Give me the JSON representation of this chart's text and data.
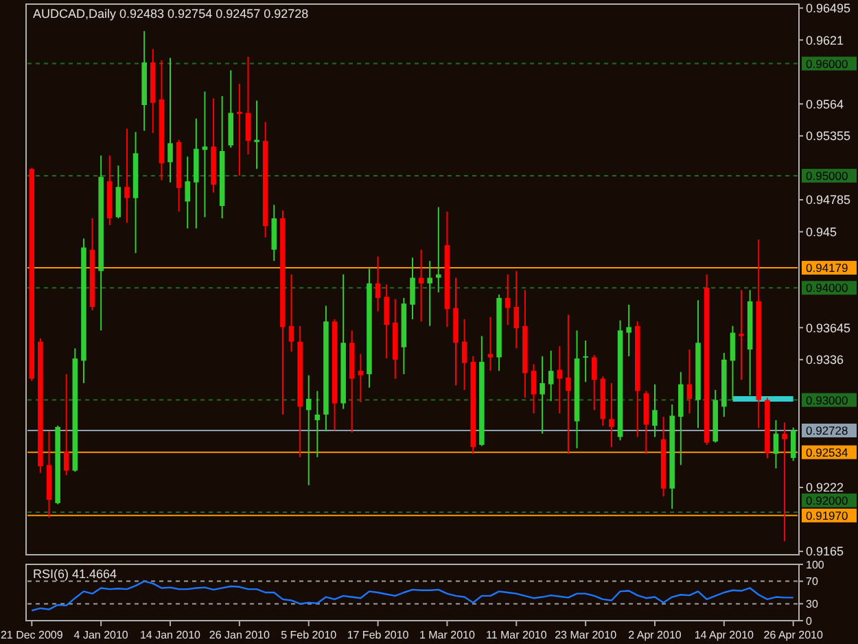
{
  "chart_data": [
    {
      "type": "candlestick",
      "title": "AUDCAD,Daily  0.92483 0.92754 0.92457 0.92728",
      "tick_labels": "y",
      "categories": [
        null,
        null,
        null,
        null,
        null,
        null,
        null,
        null,
        null,
        null,
        null,
        null,
        null,
        null,
        null,
        null,
        null,
        null,
        null,
        null,
        null,
        null,
        null,
        null,
        null,
        null,
        null,
        null,
        null,
        null,
        null,
        null,
        null,
        null,
        null,
        null,
        null,
        null,
        null,
        null,
        null,
        null,
        null,
        null,
        null,
        null,
        null,
        null,
        null,
        null,
        null,
        null,
        null,
        null,
        null,
        null,
        null,
        null,
        null,
        null,
        null,
        null,
        null,
        null,
        null,
        null,
        null,
        null,
        null,
        null,
        null,
        null,
        null,
        null,
        null,
        null,
        null,
        null,
        null,
        null,
        null,
        null,
        null,
        null,
        null,
        null,
        null,
        null,
        null
      ],
      "ohlc": [
        [
          0.9506,
          0.9507,
          0.9317,
          0.9319
        ],
        [
          0.9352,
          0.9355,
          0.9235,
          0.9241
        ],
        [
          0.9242,
          0.9272,
          0.9195,
          0.9211
        ],
        [
          0.9208,
          0.9277,
          0.9207,
          0.9276
        ],
        [
          0.9254,
          0.9323,
          0.9233,
          0.9237
        ],
        [
          0.9237,
          0.9346,
          0.9236,
          0.9337
        ],
        [
          0.9335,
          0.9444,
          0.9315,
          0.9436
        ],
        [
          0.9434,
          0.9462,
          0.938,
          0.9383
        ],
        [
          0.9415,
          0.9518,
          0.9362,
          0.9499
        ],
        [
          0.9495,
          0.9518,
          0.9456,
          0.9462
        ],
        [
          0.9463,
          0.9509,
          0.9462,
          0.949
        ],
        [
          0.949,
          0.9542,
          0.9458,
          0.948
        ],
        [
          0.948,
          0.9539,
          0.9431,
          0.952
        ],
        [
          0.9563,
          0.9629,
          0.954,
          0.9601
        ],
        [
          0.9601,
          0.9613,
          0.9538,
          0.9565
        ],
        [
          0.9568,
          0.9603,
          0.9496,
          0.9511
        ],
        [
          0.9512,
          0.9605,
          0.9494,
          0.9529
        ],
        [
          0.953,
          0.9532,
          0.9468,
          0.9489
        ],
        [
          0.9477,
          0.9517,
          0.9453,
          0.9495
        ],
        [
          0.9494,
          0.9551,
          0.9453,
          0.9524
        ],
        [
          0.9523,
          0.9575,
          0.9463,
          0.9526
        ],
        [
          0.9526,
          0.9569,
          0.9485,
          0.9492
        ],
        [
          0.9473,
          0.9571,
          0.9462,
          0.9522
        ],
        [
          0.9527,
          0.9594,
          0.9525,
          0.9556
        ],
        [
          0.9557,
          0.9582,
          0.95,
          0.9555
        ],
        [
          0.9556,
          0.9606,
          0.9519,
          0.9531
        ],
        [
          0.953,
          0.9567,
          0.9506,
          0.9532
        ],
        [
          0.9531,
          0.9548,
          0.9445,
          0.9455
        ],
        [
          0.9434,
          0.9474,
          0.9424,
          0.9462
        ],
        [
          0.9462,
          0.9469,
          0.9287,
          0.9365
        ],
        [
          0.9366,
          0.9412,
          0.9343,
          0.9352
        ],
        [
          0.9352,
          0.9366,
          0.9249,
          0.9294
        ],
        [
          0.9291,
          0.9322,
          0.9224,
          0.9301
        ],
        [
          0.9282,
          0.9308,
          0.9249,
          0.9287
        ],
        [
          0.9287,
          0.9384,
          0.9272,
          0.937
        ],
        [
          0.937,
          0.9372,
          0.9273,
          0.9297
        ],
        [
          0.9297,
          0.9412,
          0.9292,
          0.9351
        ],
        [
          0.9351,
          0.9362,
          0.9271,
          0.9319
        ],
        [
          0.9326,
          0.9341,
          0.9298,
          0.9322
        ],
        [
          0.9323,
          0.9417,
          0.9311,
          0.9404
        ],
        [
          0.9404,
          0.9428,
          0.9379,
          0.9391
        ],
        [
          0.9392,
          0.9403,
          0.9337,
          0.9367
        ],
        [
          0.9369,
          0.939,
          0.9319,
          0.9336
        ],
        [
          0.9347,
          0.9391,
          0.9323,
          0.9386
        ],
        [
          0.9385,
          0.9427,
          0.9372,
          0.9409
        ],
        [
          0.9409,
          0.9434,
          0.937,
          0.9404
        ],
        [
          0.9404,
          0.9424,
          0.9366,
          0.9409
        ],
        [
          0.9409,
          0.9472,
          0.9396,
          0.9412
        ],
        [
          0.9438,
          0.9468,
          0.9365,
          0.9381
        ],
        [
          0.9382,
          0.9409,
          0.9313,
          0.9351
        ],
        [
          0.9352,
          0.9372,
          0.9309,
          0.9333
        ],
        [
          0.9334,
          0.9339,
          0.9252,
          0.9258
        ],
        [
          0.926,
          0.9357,
          0.9259,
          0.9334
        ],
        [
          0.9341,
          0.9374,
          0.9326,
          0.9338
        ],
        [
          0.9338,
          0.9394,
          0.9326,
          0.9391
        ],
        [
          0.9391,
          0.9412,
          0.9367,
          0.9382
        ],
        [
          0.9383,
          0.9415,
          0.9346,
          0.9364
        ],
        [
          0.9366,
          0.9398,
          0.9302,
          0.9324
        ],
        [
          0.9326,
          0.9332,
          0.9288,
          0.9305
        ],
        [
          0.9305,
          0.9339,
          0.927,
          0.9315
        ],
        [
          0.9314,
          0.9344,
          0.9299,
          0.9326
        ],
        [
          0.9327,
          0.9348,
          0.9288,
          0.9319
        ],
        [
          0.932,
          0.9376,
          0.9252,
          0.9308
        ],
        [
          0.9281,
          0.9362,
          0.9257,
          0.9337
        ],
        [
          0.9338,
          0.9353,
          0.9316,
          0.9339
        ],
        [
          0.9338,
          0.934,
          0.9291,
          0.9318
        ],
        [
          0.9319,
          0.9321,
          0.9277,
          0.9283
        ],
        [
          0.9283,
          0.9315,
          0.9258,
          0.9276
        ],
        [
          0.9267,
          0.9371,
          0.9264,
          0.9362
        ],
        [
          0.936,
          0.9385,
          0.9339,
          0.9365
        ],
        [
          0.9366,
          0.937,
          0.9267,
          0.9308
        ],
        [
          0.9306,
          0.9308,
          0.9252,
          0.9278
        ],
        [
          0.9277,
          0.9314,
          0.9267,
          0.9291
        ],
        [
          0.9265,
          0.9285,
          0.9214,
          0.9221
        ],
        [
          0.9221,
          0.9296,
          0.9203,
          0.9286
        ],
        [
          0.9285,
          0.9325,
          0.9242,
          0.9314
        ],
        [
          0.9314,
          0.9345,
          0.9288,
          0.9301
        ],
        [
          0.93,
          0.9389,
          0.9275,
          0.9351
        ],
        [
          0.94,
          0.9412,
          0.926,
          0.9262
        ],
        [
          0.9263,
          0.9309,
          0.9262,
          0.93
        ],
        [
          0.9294,
          0.9342,
          0.9285,
          0.9336
        ],
        [
          0.9335,
          0.9366,
          0.93,
          0.936
        ],
        [
          0.9359,
          0.9398,
          0.9318,
          0.9357
        ],
        [
          0.9345,
          0.9398,
          0.9304,
          0.9388
        ],
        [
          0.9388,
          0.9443,
          0.9275,
          0.93
        ],
        [
          0.93,
          0.9302,
          0.9248,
          0.9253
        ],
        [
          0.9252,
          0.9282,
          0.9239,
          0.927
        ],
        [
          0.927,
          0.928,
          0.9174,
          0.9265
        ],
        [
          0.92483,
          0.92754,
          0.92457,
          0.92728
        ]
      ],
      "colors": [
        "#ff0000",
        "#ff0000",
        "#ff0000",
        "#32cd32",
        "#ff0000",
        "#32cd32",
        "#32cd32",
        "#ff0000",
        "#32cd32",
        "#ff0000",
        "#32cd32",
        "#ff0000",
        "#32cd32",
        "#32cd32",
        "#ff0000",
        "#ff0000",
        "#32cd32",
        "#ff0000",
        "#32cd32",
        "#32cd32",
        "#32cd32",
        "#ff0000",
        "#32cd32",
        "#32cd32",
        "#ff0000",
        "#ff0000",
        "#32cd32",
        "#ff0000",
        "#32cd32",
        "#ff0000",
        "#ff0000",
        "#ff0000",
        "#32cd32",
        "#32cd32",
        "#32cd32",
        "#ff0000",
        "#32cd32",
        "#ff0000",
        "#ff0000",
        "#32cd32",
        "#ff0000",
        "#ff0000",
        "#ff0000",
        "#32cd32",
        "#32cd32",
        "#ff0000",
        "#32cd32",
        "#32cd32",
        "#ff0000",
        "#ff0000",
        "#ff0000",
        "#ff0000",
        "#32cd32",
        "#ff0000",
        "#32cd32",
        "#ff0000",
        "#ff0000",
        "#ff0000",
        "#ff0000",
        "#32cd32",
        "#32cd32",
        "#ff0000",
        "#ff0000",
        "#32cd32",
        "#32cd32",
        "#ff0000",
        "#ff0000",
        "#ff0000",
        "#32cd32",
        "#32cd32",
        "#ff0000",
        "#ff0000",
        "#32cd32",
        "#ff0000",
        "#32cd32",
        "#32cd32",
        "#ff0000",
        "#32cd32",
        "#ff0000",
        "#32cd32",
        "#32cd32",
        "#32cd32",
        "#ff0000",
        "#32cd32",
        "#ff0000",
        "#ff0000",
        "#32cd32",
        "#ff0000",
        "#32cd32"
      ],
      "series": [
        {
          "type": "line",
          "color": "#33cccc",
          "values": [
            null,
            null,
            null,
            null,
            null,
            null,
            null,
            null,
            null,
            null,
            null,
            null,
            null,
            null,
            null,
            null,
            null,
            null,
            null,
            null,
            null,
            null,
            null,
            null,
            null,
            null,
            null,
            null,
            null,
            null,
            null,
            null,
            null,
            null,
            null,
            null,
            null,
            null,
            null,
            null,
            null,
            null,
            null,
            null,
            null,
            null,
            null,
            null,
            null,
            null,
            null,
            null,
            null,
            null,
            null,
            null,
            null,
            null,
            null,
            null,
            null,
            null,
            null,
            null,
            null,
            null,
            null,
            null,
            null,
            null,
            null,
            null,
            null,
            null,
            null,
            null,
            null,
            null,
            null,
            null,
            null,
            0.9301,
            0.9301,
            0.9301,
            0.9301,
            0.9301,
            0.9301,
            0.9301,
            0.9301
          ]
        }
      ],
      "ylim": [
        0.9162,
        0.9653
      ],
      "yticks": [
        0.96495,
        0.9621,
        0.9564,
        0.95355,
        0.94785,
        0.945,
        0.93645,
        0.9336,
        0.9222,
        0.9165
      ],
      "ref_lines": [
        {
          "axis": "y",
          "value": 0.96,
          "label": "0.96000",
          "color": "#1f6e1f",
          "line_style": "dashed"
        },
        {
          "axis": "y",
          "value": 0.95,
          "label": "0.95000",
          "color": "#1f6e1f",
          "line_style": "dashed"
        },
        {
          "axis": "y",
          "value": 0.94,
          "label": "0.94000",
          "color": "#1f6e1f",
          "line_style": "dashed"
        },
        {
          "axis": "y",
          "value": 0.93,
          "label": "0.93000",
          "color": "#1f6e1f",
          "line_style": "dashed"
        },
        {
          "axis": "y",
          "value": 0.92,
          "label": "0.92000",
          "color": "#1f6e1f",
          "line_style": "dashed"
        },
        {
          "axis": "y",
          "value": 0.94179,
          "label": "0.94179",
          "color": "#ff9900",
          "line_style": "solid"
        },
        {
          "axis": "y",
          "value": 0.92534,
          "label": "0.92534",
          "color": "#ff9900",
          "line_style": "solid"
        },
        {
          "axis": "y",
          "value": 0.9197,
          "label": "0.91970",
          "color": "#ff9900",
          "line_style": "solid"
        },
        {
          "axis": "y",
          "value": 0.92728,
          "label": "0.92728",
          "color": "#8fa0b0",
          "line_style": "solid"
        }
      ]
    },
    {
      "type": "line",
      "title": "RSI(6) 41.4664",
      "categories": [
        "21 Dec 2009",
        null,
        null,
        null,
        null,
        null,
        null,
        null,
        "4 Jan 2010",
        null,
        null,
        null,
        null,
        null,
        null,
        null,
        "14 Jan 2010",
        null,
        null,
        null,
        null,
        null,
        null,
        null,
        "26 Jan 2010",
        null,
        null,
        null,
        null,
        null,
        null,
        null,
        "5 Feb 2010",
        null,
        null,
        null,
        null,
        null,
        null,
        null,
        "17 Feb 2010",
        null,
        null,
        null,
        null,
        null,
        null,
        null,
        "1 Mar 2010",
        null,
        null,
        null,
        null,
        null,
        null,
        null,
        "11 Mar 2010",
        null,
        null,
        null,
        null,
        null,
        null,
        null,
        "23 Mar 2010",
        null,
        null,
        null,
        null,
        null,
        null,
        null,
        "2 Apr 2010",
        null,
        null,
        null,
        null,
        null,
        null,
        null,
        "14 Apr 2010",
        null,
        null,
        null,
        null,
        null,
        null,
        null,
        "26 Apr 2010"
      ],
      "series": [
        {
          "color": "#1e78ff",
          "values": [
            18,
            22,
            20,
            28,
            27,
            40,
            52,
            48,
            58,
            56,
            57,
            56,
            62,
            70,
            66,
            58,
            59,
            56,
            56,
            58,
            59,
            55,
            58,
            61,
            60,
            56,
            56,
            50,
            50,
            38,
            36,
            30,
            32,
            31,
            42,
            38,
            44,
            42,
            40,
            52,
            50,
            47,
            44,
            50,
            55,
            54,
            54,
            55,
            48,
            44,
            42,
            32,
            44,
            44,
            52,
            50,
            48,
            44,
            40,
            42,
            45,
            43,
            41,
            48,
            48,
            44,
            38,
            36,
            52,
            53,
            45,
            40,
            42,
            32,
            42,
            46,
            45,
            52,
            38,
            44,
            50,
            54,
            53,
            58,
            46,
            38,
            42,
            41,
            41
          ]
        }
      ],
      "ylim": [
        0,
        100
      ],
      "yticks": [
        100,
        70,
        30,
        0
      ],
      "ref_lines": [
        {
          "axis": "y",
          "value": 70,
          "color": "#a0a0a0",
          "line_style": "dashed"
        },
        {
          "axis": "y",
          "value": 30,
          "color": "#a0a0a0",
          "line_style": "dashed"
        }
      ]
    }
  ]
}
